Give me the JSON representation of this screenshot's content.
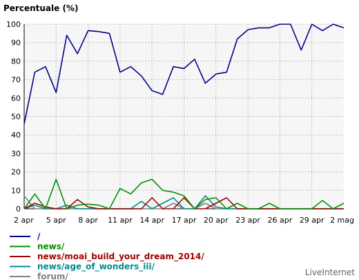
{
  "chart_data": {
    "type": "line",
    "title": "Percentuale (%)",
    "xlabel": "",
    "ylabel": "",
    "ylim": [
      0,
      100
    ],
    "y_ticks": [
      0,
      10,
      20,
      30,
      40,
      50,
      60,
      70,
      80,
      90,
      100
    ],
    "x_count": 31,
    "x_tick_labels": [
      {
        "index": 0,
        "label": "2 apr"
      },
      {
        "index": 3,
        "label": "5 apr"
      },
      {
        "index": 6,
        "label": "8 apr"
      },
      {
        "index": 9,
        "label": "11 apr"
      },
      {
        "index": 12,
        "label": "14 apr"
      },
      {
        "index": 15,
        "label": "17 apr"
      },
      {
        "index": 18,
        "label": "20 apr"
      },
      {
        "index": 21,
        "label": "23 apr"
      },
      {
        "index": 24,
        "label": "26 apr"
      },
      {
        "index": 27,
        "label": "29 apr"
      },
      {
        "index": 30,
        "label": "2 mag"
      }
    ],
    "grid": true,
    "legend_position": "bottom",
    "series": [
      {
        "name": "/",
        "color": "#00008b",
        "values": [
          46,
          74,
          77,
          63,
          94,
          84,
          96.5,
          96,
          95,
          74,
          77,
          72,
          64,
          62,
          77,
          76,
          81,
          68,
          73,
          74,
          92,
          97,
          98,
          98,
          100,
          100,
          86,
          100,
          96.5,
          100,
          98
        ]
      },
      {
        "name": "news/",
        "color": "#009000",
        "values": [
          0,
          8,
          0,
          16,
          0,
          2,
          2.5,
          2,
          0,
          11,
          8,
          14,
          16,
          10,
          9,
          7,
          0,
          5,
          6,
          0,
          3,
          0,
          0,
          3,
          0,
          0,
          0,
          0,
          4.5,
          0,
          3
        ]
      },
      {
        "name": "news/moai_build_your_dream_2014/",
        "color": "#a00000",
        "values": [
          0,
          3,
          1,
          0,
          0,
          5,
          1,
          0,
          0,
          0,
          0,
          0,
          6,
          0,
          0,
          6,
          0,
          0,
          3,
          6,
          0,
          0,
          0,
          0,
          0,
          0,
          0,
          0,
          0,
          0,
          0
        ]
      },
      {
        "name": "news/age_of_wonders_iii/",
        "color": "#008b8b",
        "values": [
          0,
          2,
          0,
          0,
          2,
          0,
          0,
          0,
          0,
          0,
          0,
          4,
          0,
          3,
          6,
          0,
          0,
          7,
          1,
          0,
          0,
          0,
          0,
          0,
          0,
          0,
          0,
          0,
          0,
          0,
          0
        ]
      },
      {
        "name": "forum/",
        "color": "#808080",
        "values": [
          7,
          0,
          0,
          0,
          0,
          0,
          0,
          0,
          0,
          0,
          0,
          0,
          0,
          0,
          3,
          0,
          0,
          3,
          0,
          0,
          0,
          0,
          0,
          0,
          0,
          0,
          0,
          0,
          0,
          0,
          0
        ]
      }
    ]
  },
  "brand": "LiveInternet"
}
